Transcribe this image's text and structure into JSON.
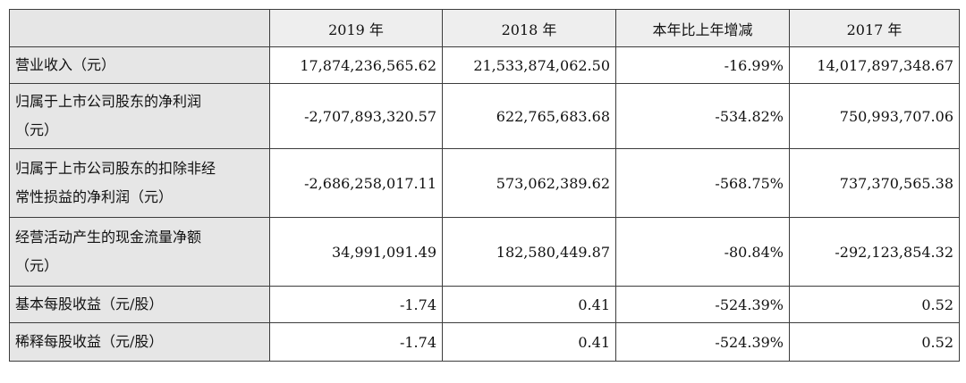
{
  "header": {
    "col1": "2019 年",
    "col2": "2018 年",
    "col3": "本年比上年增减",
    "col4": "2017 年"
  },
  "rows": [
    {
      "label_lines": [
        "营业收入（元）"
      ],
      "v2019": "17,874,236,565.62",
      "v2018": "21,533,874,062.50",
      "change": "-16.99%",
      "v2017": "14,017,897,348.67"
    },
    {
      "label_lines": [
        "归属于上市公司股东的净利润",
        "（元）"
      ],
      "v2019": "-2,707,893,320.57",
      "v2018": "622,765,683.68",
      "change": "-534.82%",
      "v2017": "750,993,707.06"
    },
    {
      "label_lines": [
        "归属于上市公司股东的扣除非经",
        "常性损益的净利润（元）"
      ],
      "v2019": "-2,686,258,017.11",
      "v2018": "573,062,389.62",
      "change": "-568.75%",
      "v2017": "737,370,565.38"
    },
    {
      "label_lines": [
        "经营活动产生的现金流量净额",
        "（元）"
      ],
      "v2019": "34,991,091.49",
      "v2018": "182,580,449.87",
      "change": "-80.84%",
      "v2017": "-292,123,854.32"
    },
    {
      "label_lines": [
        "基本每股收益（元/股）"
      ],
      "v2019": "-1.74",
      "v2018": "0.41",
      "change": "-524.39%",
      "v2017": "0.52"
    },
    {
      "label_lines": [
        "稀释每股收益（元/股）"
      ],
      "v2019": "-1.74",
      "v2018": "0.41",
      "change": "-524.39%",
      "v2017": "0.52"
    }
  ]
}
